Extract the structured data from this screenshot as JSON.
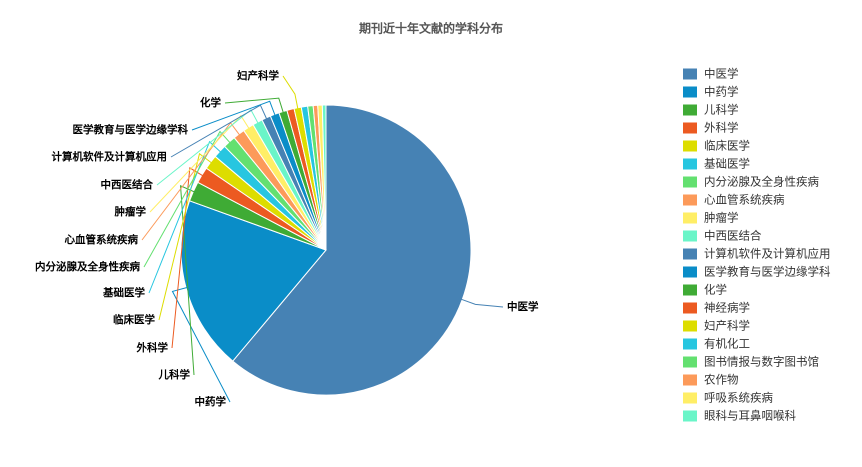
{
  "chart_data": {
    "type": "pie",
    "title": "期刊近十年文献的学科分布",
    "categories": [
      "中医学",
      "中药学",
      "儿科学",
      "外科学",
      "临床医学",
      "基础医学",
      "内分泌腺及全身性疾病",
      "心血管系统疾病",
      "肿瘤学",
      "中西医结合",
      "计算机软件及计算机应用",
      "医学教育与医学边缘学科",
      "化学",
      "神经病学",
      "妇产科学",
      "有机化工",
      "图书情报与数字图书馆",
      "农作物",
      "呼吸系统疾病",
      "眼科与耳鼻咽喉科"
    ],
    "values": [
      60.5,
      19.2,
      2.2,
      1.8,
      1.6,
      1.5,
      1.4,
      1.3,
      1.2,
      1.1,
      1.0,
      1.0,
      0.9,
      0.8,
      0.8,
      0.7,
      0.6,
      0.5,
      0.5,
      0.4
    ],
    "colors": [
      "#4682b4",
      "#0a8dc8",
      "#3fab35",
      "#ec5a21",
      "#dddd00",
      "#27c6e0",
      "#63e070",
      "#fc9a5a",
      "#ffee66",
      "#6af5c8",
      "#4682b4",
      "#0a8dc8",
      "#3fab35",
      "#ec5a21",
      "#dddd00",
      "#27c6e0",
      "#63e070",
      "#fc9a5a",
      "#ffee66",
      "#6af5c8"
    ],
    "legend": "right"
  }
}
